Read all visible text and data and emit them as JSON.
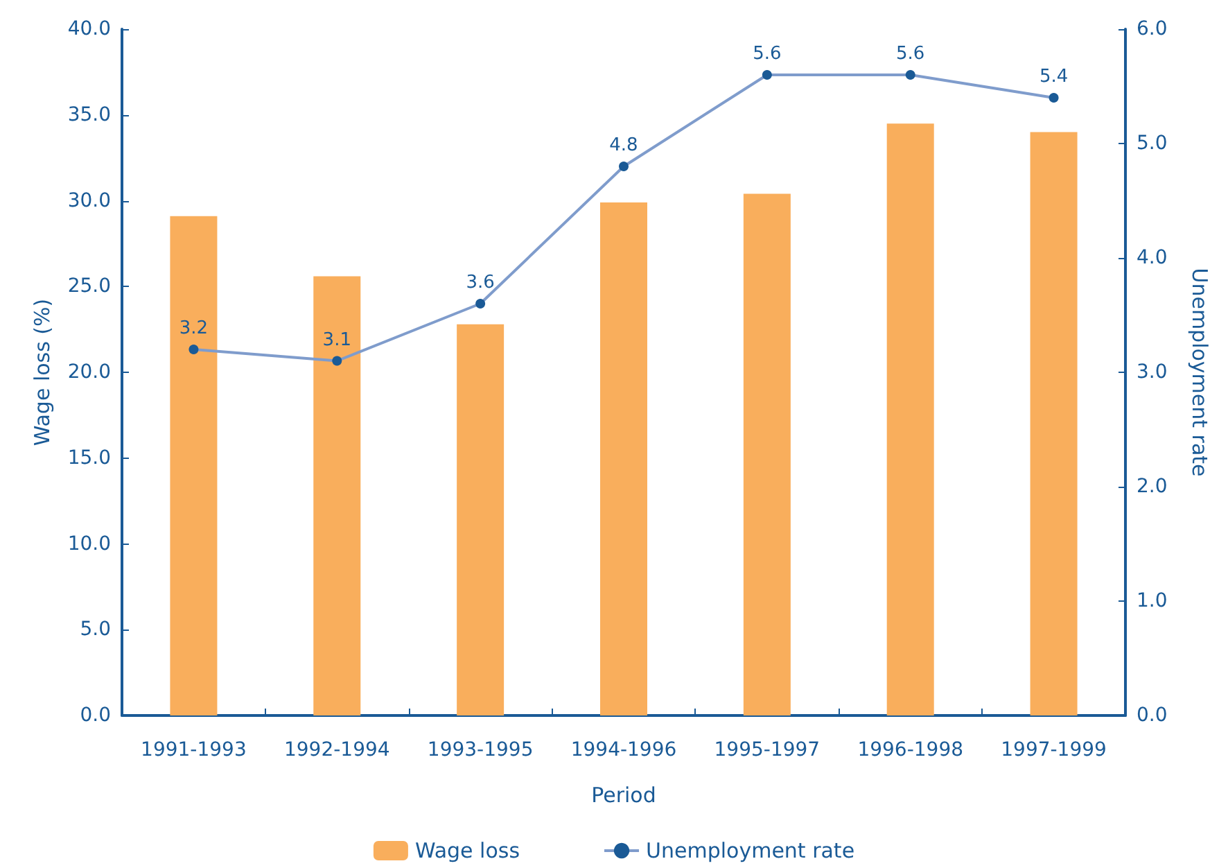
{
  "chart_data": {
    "type": "bar",
    "xlabel": "Period",
    "ylabel": "Wage loss (%)",
    "y2label": "Unemployment rate",
    "categories": [
      "1991-1993",
      "1992-1994",
      "1993-1995",
      "1994-1996",
      "1995-1997",
      "1996-1998",
      "1997-1999"
    ],
    "series": [
      {
        "name": "Wage loss",
        "color": "#f9ae5c",
        "values": [
          29.1,
          25.6,
          22.8,
          29.9,
          30.4,
          34.5,
          34.0
        ]
      },
      {
        "name": "Unemployment rate",
        "type": "line",
        "axis": "y2",
        "color": "#7f9ccc",
        "marker": "circle",
        "values": [
          3.2,
          3.1,
          3.6,
          4.8,
          5.6,
          5.6,
          5.4
        ],
        "value_labels": [
          "3.2",
          "3.1",
          "3.6",
          "4.8",
          "5.6",
          "5.6",
          "5.4"
        ]
      }
    ],
    "ylim": [
      0,
      40
    ],
    "yticks": [
      {
        "value": 0,
        "label": "0.0"
      },
      {
        "value": 5,
        "label": "5.0"
      },
      {
        "value": 10,
        "label": "10.0"
      },
      {
        "value": 15,
        "label": "15.0"
      },
      {
        "value": 20,
        "label": "20.0"
      },
      {
        "value": 25,
        "label": "25.0"
      },
      {
        "value": 30,
        "label": "30.0"
      },
      {
        "value": 35,
        "label": "35.0"
      },
      {
        "value": 40,
        "label": "40.0"
      }
    ],
    "y2lim": [
      0,
      6
    ],
    "y2ticks": [
      {
        "value": 0,
        "label": "0.0"
      },
      {
        "value": 1,
        "label": "1.0"
      },
      {
        "value": 2,
        "label": "2.0"
      },
      {
        "value": 3,
        "label": "3.0"
      },
      {
        "value": 4,
        "label": "4.0"
      },
      {
        "value": 5,
        "label": "5.0"
      },
      {
        "value": 6,
        "label": "6.0"
      }
    ],
    "grid": false,
    "legend": "bottom"
  }
}
